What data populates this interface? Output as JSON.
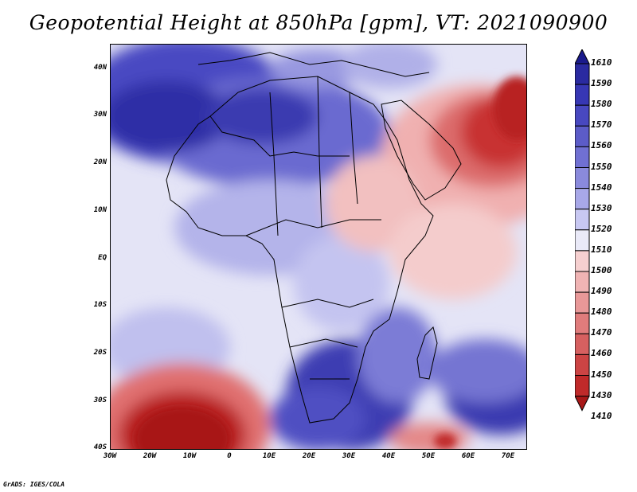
{
  "title": "Geopotential Height at 850hPa [gpm], VT: 2021090900",
  "credit": "GrADS: IGES/COLA",
  "y_ticks": [
    "40N",
    "30N",
    "20N",
    "10N",
    "EQ",
    "10S",
    "20S",
    "30S",
    "40S"
  ],
  "x_ticks": [
    "30W",
    "20W",
    "10W",
    "0",
    "10E",
    "20E",
    "30E",
    "40E",
    "50E",
    "60E",
    "70E"
  ],
  "colorbar": {
    "levels": [
      "1610",
      "1590",
      "1580",
      "1570",
      "1560",
      "1550",
      "1540",
      "1530",
      "1520",
      "1510",
      "1500",
      "1490",
      "1480",
      "1470",
      "1460",
      "1450",
      "1430",
      "1410"
    ],
    "colors": [
      "#1a1a8c",
      "#2a2aa0",
      "#3737b4",
      "#4848c0",
      "#5c5cc8",
      "#7070d2",
      "#8a8adc",
      "#a8a8e8",
      "#c8c8f2",
      "#eaeaf8",
      "#f6d0d0",
      "#f0b4b4",
      "#e89898",
      "#e07c7c",
      "#d66060",
      "#cc4444",
      "#c02a2a",
      "#a81818"
    ]
  }
}
